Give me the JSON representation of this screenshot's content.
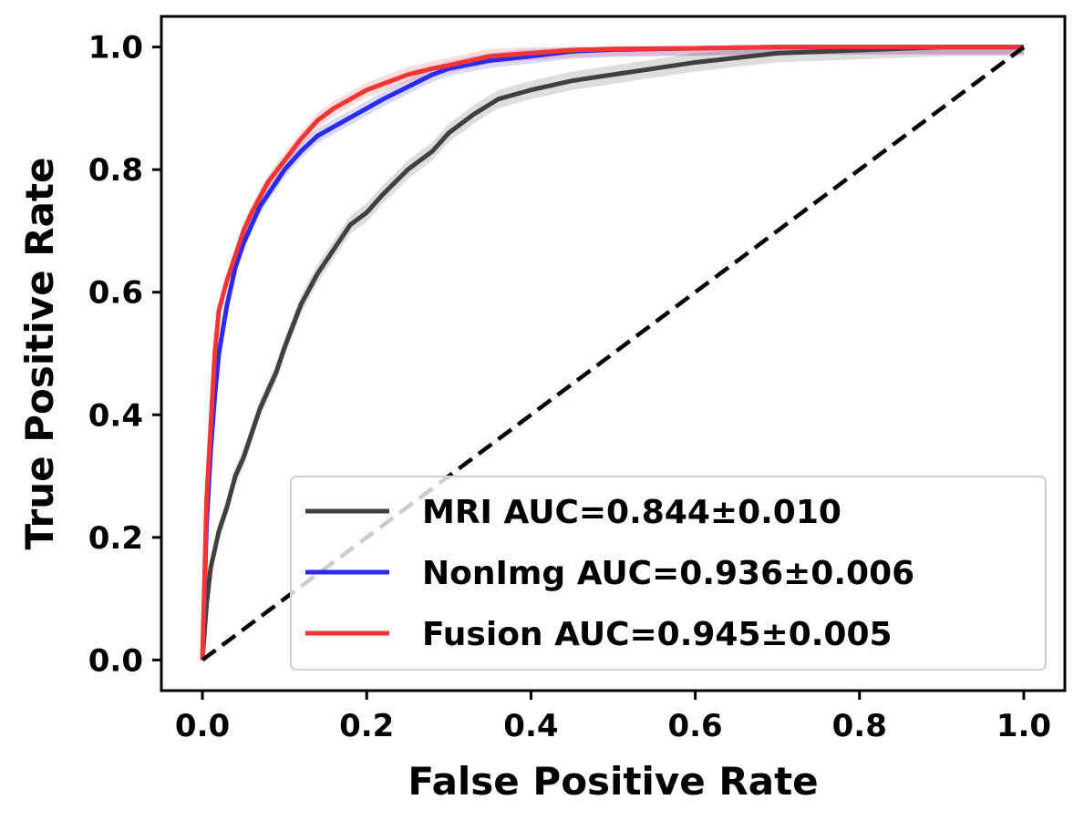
{
  "chart_data": {
    "type": "line",
    "title": "",
    "xlabel": "False Positive Rate",
    "ylabel": "True Positive Rate",
    "xlim": [
      -0.05,
      1.05
    ],
    "ylim": [
      -0.05,
      1.05
    ],
    "xticks": [
      "0.0",
      "0.2",
      "0.4",
      "0.6",
      "0.8",
      "1.0"
    ],
    "yticks": [
      "0.0",
      "0.2",
      "0.4",
      "0.6",
      "0.8",
      "1.0"
    ],
    "grid": false,
    "legend_position": "lower-right",
    "reference_line": {
      "x": [
        0,
        1
      ],
      "y": [
        0,
        1
      ],
      "style": "dashed",
      "color": "#000000"
    },
    "series": [
      {
        "name": "MRI AUC=0.844±0.010",
        "color": "#404040",
        "band": 0.015,
        "x": [
          0,
          0.005,
          0.01,
          0.02,
          0.03,
          0.04,
          0.05,
          0.06,
          0.07,
          0.08,
          0.09,
          0.1,
          0.12,
          0.14,
          0.16,
          0.18,
          0.2,
          0.22,
          0.25,
          0.28,
          0.3,
          0.33,
          0.36,
          0.4,
          0.45,
          0.5,
          0.55,
          0.6,
          0.7,
          0.8,
          0.9,
          1.0
        ],
        "y": [
          0,
          0.09,
          0.15,
          0.21,
          0.25,
          0.3,
          0.33,
          0.37,
          0.41,
          0.44,
          0.47,
          0.51,
          0.58,
          0.63,
          0.67,
          0.71,
          0.73,
          0.76,
          0.8,
          0.83,
          0.86,
          0.89,
          0.915,
          0.93,
          0.945,
          0.955,
          0.965,
          0.975,
          0.99,
          0.995,
          1.0,
          1.0
        ]
      },
      {
        "name": "NonImg AUC=0.936±0.006",
        "color": "#2a2af0",
        "band": 0.012,
        "x": [
          0,
          0.005,
          0.01,
          0.015,
          0.02,
          0.03,
          0.04,
          0.05,
          0.06,
          0.07,
          0.08,
          0.1,
          0.12,
          0.14,
          0.16,
          0.18,
          0.2,
          0.22,
          0.25,
          0.28,
          0.3,
          0.35,
          0.4,
          0.45,
          0.5,
          0.6,
          0.7,
          0.8,
          0.9,
          1.0
        ],
        "y": [
          0,
          0.22,
          0.34,
          0.43,
          0.5,
          0.58,
          0.64,
          0.68,
          0.71,
          0.74,
          0.76,
          0.8,
          0.83,
          0.855,
          0.87,
          0.885,
          0.9,
          0.915,
          0.935,
          0.955,
          0.965,
          0.978,
          0.985,
          0.993,
          0.996,
          0.998,
          1.0,
          1.0,
          1.0,
          1.0
        ]
      },
      {
        "name": "Fusion AUC=0.945±0.005",
        "color": "#f53535",
        "band": 0.012,
        "x": [
          0,
          0.005,
          0.01,
          0.015,
          0.02,
          0.03,
          0.04,
          0.05,
          0.06,
          0.07,
          0.08,
          0.1,
          0.12,
          0.14,
          0.16,
          0.18,
          0.2,
          0.22,
          0.25,
          0.28,
          0.3,
          0.35,
          0.4,
          0.45,
          0.5,
          0.6,
          0.7,
          0.8,
          0.9,
          1.0
        ],
        "y": [
          0,
          0.26,
          0.38,
          0.5,
          0.57,
          0.62,
          0.66,
          0.7,
          0.73,
          0.755,
          0.78,
          0.815,
          0.85,
          0.88,
          0.9,
          0.915,
          0.93,
          0.94,
          0.955,
          0.965,
          0.97,
          0.985,
          0.99,
          0.995,
          0.997,
          0.998,
          1.0,
          1.0,
          1.0,
          1.0
        ]
      }
    ]
  }
}
